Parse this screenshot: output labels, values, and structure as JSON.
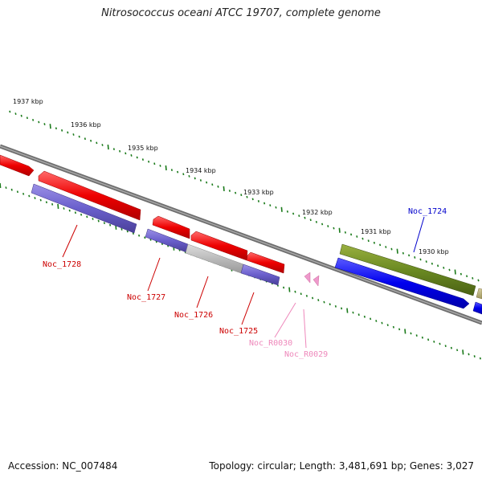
{
  "title": "Nitrosococcus oceani ATCC 19707, complete genome",
  "footer": {
    "accession": "Accession: NC_007484",
    "topology": "Topology: circular; Length: 3,481,691 bp; Genes: 3,027"
  },
  "colors": {
    "backbone": "#808080",
    "tick": "#1a7a1a",
    "label_red": "#cc0000",
    "label_blue": "#0000cc",
    "label_pink": "#ee88bb"
  },
  "ticks": [
    "1937 kbp",
    "1936 kbp",
    "1935 kbp",
    "1934 kbp",
    "1933 kbp",
    "1932 kbp",
    "1931 kbp",
    "1930 kbp"
  ],
  "genes": [
    {
      "label": "Noc_1728",
      "color": "red"
    },
    {
      "label": "Noc_1727",
      "color": "red"
    },
    {
      "label": "Noc_1726",
      "color": "red"
    },
    {
      "label": "Noc_1725",
      "color": "red"
    },
    {
      "label": "Noc_R0030",
      "color": "pink"
    },
    {
      "label": "Noc_R0029",
      "color": "pink"
    },
    {
      "label": "Noc_1724",
      "color": "blue"
    }
  ]
}
